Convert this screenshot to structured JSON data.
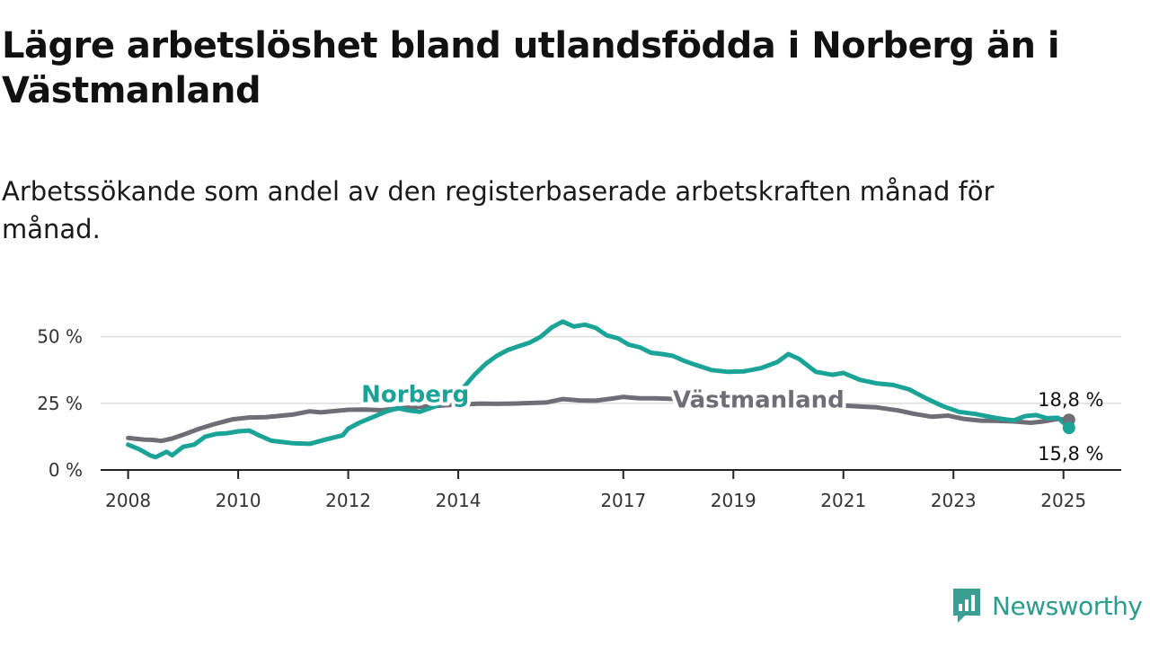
{
  "header": {
    "title": "Lägre arbetslöshet bland utlandsfödda i Norberg än i Västmanland",
    "subtitle": "Arbetssökande som andel av den registerbaserade arbetskraften månad för månad."
  },
  "brand": {
    "name": "Newsworthy",
    "icon": "newsworthy-logo-icon",
    "color": "#3a9e92"
  },
  "colors": {
    "norberg": "#1aa396",
    "vastmanland": "#6f6e76",
    "grid": "#dddddd",
    "axis": "#222222"
  },
  "chart_data": {
    "type": "line",
    "x_unit": "year",
    "xlim": [
      2007.5,
      2026.05
    ],
    "ylim": [
      0,
      60
    ],
    "ylabel": "",
    "xlabel": "",
    "grid": true,
    "y_ticks": [
      {
        "value": 0,
        "label": "0 %"
      },
      {
        "value": 25,
        "label": "25 %"
      },
      {
        "value": 50,
        "label": "50 %"
      }
    ],
    "x_ticks": [
      {
        "value": 2008,
        "label": "2008"
      },
      {
        "value": 2010,
        "label": "2010"
      },
      {
        "value": 2012,
        "label": "2012"
      },
      {
        "value": 2014,
        "label": "2014"
      },
      {
        "value": 2017,
        "label": "2017"
      },
      {
        "value": 2019,
        "label": "2019"
      },
      {
        "value": 2021,
        "label": "2021"
      },
      {
        "value": 2023,
        "label": "2023"
      },
      {
        "value": 2025,
        "label": "2025"
      }
    ],
    "series": [
      {
        "name": "Västmanland",
        "color": "#6f6e76",
        "end_value": 18.8,
        "end_label": "18,8 %",
        "x": [
          2008.0,
          2008.3,
          2008.45,
          2008.6,
          2008.8,
          2009.0,
          2009.3,
          2009.6,
          2009.9,
          2010.2,
          2010.5,
          2010.8,
          2011.0,
          2011.3,
          2011.5,
          2011.8,
          2012.0,
          2012.3,
          2012.6,
          2012.9,
          2013.2,
          2013.5,
          2013.8,
          2014.1,
          2014.4,
          2014.7,
          2015.0,
          2015.3,
          2015.6,
          2015.9,
          2016.2,
          2016.5,
          2016.8,
          2017.0,
          2017.3,
          2017.6,
          2018.0,
          2018.5,
          2019.0,
          2019.5,
          2020.0,
          2020.5,
          2021.0,
          2021.3,
          2021.6,
          2022.0,
          2022.3,
          2022.6,
          2022.9,
          2023.2,
          2023.5,
          2023.8,
          2024.1,
          2024.4,
          2024.6,
          2024.9,
          2025.1
        ],
        "y": [
          12,
          11.4,
          11.3,
          10.9,
          11.8,
          13.2,
          15.5,
          17.4,
          19,
          19.7,
          19.8,
          20.4,
          20.8,
          22,
          21.6,
          22.2,
          22.6,
          22.7,
          22.4,
          23,
          23.6,
          23.9,
          24.3,
          24.6,
          24.9,
          24.8,
          24.9,
          25.1,
          25.3,
          26.6,
          26.1,
          26,
          26.8,
          27.4,
          26.9,
          26.9,
          26.6,
          26,
          25.5,
          25.3,
          25.2,
          25,
          24.2,
          23.8,
          23.5,
          22.3,
          21,
          20,
          20.4,
          19.1,
          18.5,
          18.4,
          18.2,
          17.7,
          18.1,
          19.1,
          18.8
        ]
      },
      {
        "name": "Norberg",
        "color": "#1aa396",
        "end_value": 15.8,
        "end_label": "15,8 %",
        "x": [
          2008.0,
          2008.2,
          2008.4,
          2008.5,
          2008.7,
          2008.8,
          2009.0,
          2009.2,
          2009.4,
          2009.6,
          2009.8,
          2010.0,
          2010.2,
          2010.4,
          2010.6,
          2010.8,
          2011.0,
          2011.3,
          2011.6,
          2011.9,
          2012.0,
          2012.2,
          2012.5,
          2012.7,
          2012.9,
          2013.1,
          2013.3,
          2013.6,
          2013.9,
          2014.1,
          2014.3,
          2014.5,
          2014.7,
          2014.9,
          2015.1,
          2015.3,
          2015.5,
          2015.7,
          2015.9,
          2016.1,
          2016.3,
          2016.5,
          2016.7,
          2016.9,
          2017.1,
          2017.3,
          2017.5,
          2017.7,
          2017.9,
          2018.1,
          2018.3,
          2018.6,
          2018.9,
          2019.2,
          2019.5,
          2019.8,
          2020.0,
          2020.2,
          2020.5,
          2020.8,
          2021.0,
          2021.3,
          2021.6,
          2021.9,
          2022.2,
          2022.5,
          2022.8,
          2023.1,
          2023.4,
          2023.7,
          2023.9,
          2024.1,
          2024.3,
          2024.5,
          2024.7,
          2024.9,
          2025.1
        ],
        "y": [
          9.5,
          7.8,
          5.5,
          4.8,
          6.8,
          5.5,
          8.7,
          9.5,
          12.5,
          13.5,
          13.8,
          14.5,
          14.8,
          12.8,
          11,
          10.5,
          10,
          9.8,
          11.5,
          13,
          15.5,
          17.7,
          20.3,
          22,
          23.2,
          22.3,
          21.8,
          24,
          27.5,
          31,
          35.8,
          39.8,
          42.8,
          45,
          46.4,
          47.8,
          50,
          53.5,
          55.7,
          53.8,
          54.5,
          53.3,
          50.5,
          49.4,
          47,
          46,
          44,
          43.5,
          42.8,
          41,
          39.5,
          37.5,
          36.8,
          37,
          38.2,
          40.5,
          43.5,
          41.6,
          36.8,
          35.7,
          36.4,
          33.8,
          32.5,
          31.9,
          30.2,
          26.9,
          24,
          21.8,
          21,
          19.8,
          19.1,
          18.6,
          20.2,
          20.6,
          19.4,
          19.6,
          15.8
        ]
      }
    ]
  }
}
